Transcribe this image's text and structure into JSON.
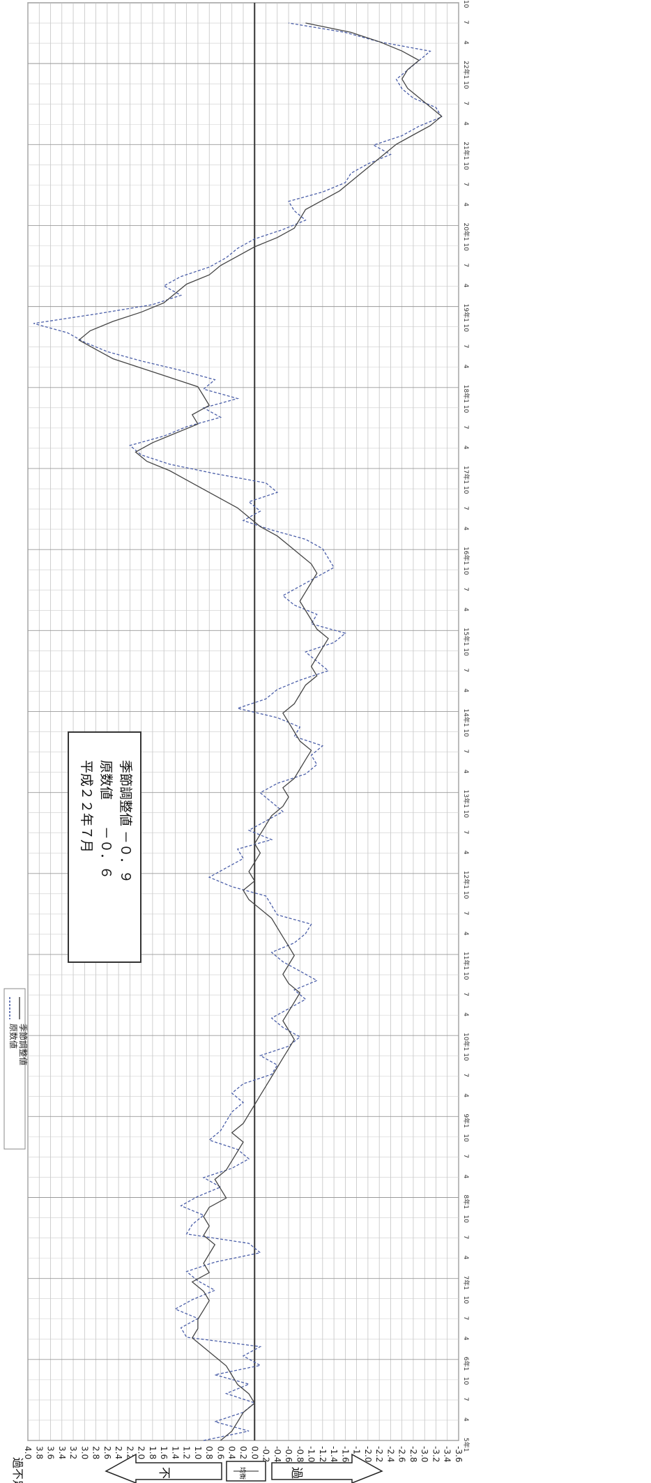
{
  "legend": {
    "raw_label": "原数値",
    "sa_label": "季節調整値"
  },
  "info_box": {
    "line1": "平成２２年７月",
    "line2": "原数値　　－０．６",
    "line3": "季節調整値 －０．９"
  },
  "axis": {
    "value_label": "過不足率（%）",
    "ticks": [
      "4.0",
      "3.8",
      "3.6",
      "3.4",
      "3.2",
      "3.0",
      "2.8",
      "2.6",
      "2.4",
      "2.2",
      "2.0",
      "1.8",
      "1.6",
      "1.4",
      "1.2",
      "1.0",
      "0.8",
      "0.6",
      "0.4",
      "0.2",
      "0.0",
      "-0.2",
      "-0.4",
      "-0.6",
      "-0.8",
      "-1.0",
      "-1.2",
      "-1.4",
      "-1.6",
      "-1.8",
      "-2.0",
      "-2.2",
      "-2.4",
      "-2.6",
      "-2.8",
      "-3.0",
      "-3.2",
      "-3.4",
      "-3.6"
    ],
    "shortage_label": "不　足",
    "balance_label": "均衡",
    "surplus_label": "過　剰"
  },
  "chart_data": {
    "type": "line",
    "orientation": "rotated",
    "xlabel": "",
    "ylabel": "過不足率（%）",
    "ylim": [
      -3.6,
      4.0
    ],
    "year_labels": [
      "5年1",
      "6年1",
      "7年1",
      "8年1",
      "9年1",
      "10年1",
      "11年1",
      "12年1",
      "13年1",
      "14年1",
      "15年1",
      "16年1",
      "17年1",
      "18年1",
      "19年1",
      "20年1",
      "21年1",
      "22年1"
    ],
    "month_labels": [
      "1",
      "4",
      "7",
      "10"
    ],
    "x_start": "平成5年1月",
    "x_end": "平成22年7月",
    "series": [
      {
        "name": "原数値",
        "style": "dashed",
        "values": [
          0.9,
          0.1,
          0.7,
          0.2,
          0.0,
          0.5,
          0.1,
          0.7,
          -0.1,
          0.2,
          -0.1,
          1.2,
          1.3,
          1.0,
          1.4,
          1.1,
          0.7,
          1.0,
          1.2,
          0.7,
          -0.1,
          0.1,
          1.2,
          1.1,
          0.9,
          1.3,
          1.0,
          0.6,
          0.9,
          0.4,
          0.1,
          0.3,
          0.8,
          0.6,
          0.5,
          0.4,
          0.2,
          0.4,
          0.2,
          -0.3,
          -0.4,
          -0.1,
          -0.6,
          -0.8,
          -0.5,
          -0.3,
          -0.6,
          -0.9,
          -0.7,
          -1.1,
          -0.8,
          -0.5,
          -0.3,
          -0.7,
          -0.9,
          -1.0,
          -0.4,
          -0.3,
          -0.2,
          0.4,
          0.8,
          0.5,
          0.2,
          0.3,
          -0.3,
          0.1,
          -0.2,
          -0.5,
          -0.3,
          -0.1,
          -0.4,
          -0.9,
          -1.1,
          -1.0,
          -1.2,
          -0.7,
          -0.8,
          -0.4,
          0.3,
          -0.2,
          -0.4,
          -0.8,
          -1.3,
          -1.1,
          -0.9,
          -1.4,
          -1.6,
          -1.0,
          -1.1,
          -0.7,
          -0.5,
          -0.8,
          -1.1,
          -1.4,
          -1.3,
          -1.2,
          -0.9,
          -0.3,
          0.2,
          -0.1,
          0.1,
          -0.4,
          -0.2,
          0.7,
          1.5,
          2.0,
          2.2,
          1.6,
          1.2,
          0.6,
          0.9,
          0.3,
          0.9,
          0.7,
          1.3,
          2.0,
          2.6,
          3.0,
          3.3,
          3.9,
          2.8,
          1.8,
          1.3,
          1.6,
          1.3,
          0.8,
          0.5,
          0.3,
          0.0,
          -0.5,
          -0.9,
          -0.7,
          -0.6,
          -1.2,
          -1.6,
          -1.7,
          -2.0,
          -2.4,
          -2.1,
          -2.6,
          -2.9,
          -3.3,
          -3.2,
          -2.8,
          -2.6,
          -2.5,
          -2.7,
          -2.9,
          -3.1,
          -2.2,
          -1.6,
          -0.6
        ]
      },
      {
        "name": "季節調整値",
        "style": "solid",
        "values": [
          0.6,
          0.4,
          0.3,
          0.2,
          0.0,
          0.1,
          0.3,
          0.4,
          0.5,
          0.7,
          0.9,
          1.1,
          1.0,
          1.0,
          0.9,
          0.8,
          0.9,
          1.1,
          0.8,
          0.9,
          0.8,
          0.7,
          0.9,
          0.8,
          0.9,
          0.8,
          0.5,
          0.6,
          0.7,
          0.5,
          0.4,
          0.3,
          0.2,
          0.4,
          0.2,
          0.1,
          0.0,
          -0.1,
          -0.2,
          -0.3,
          -0.4,
          -0.5,
          -0.6,
          -0.7,
          -0.6,
          -0.5,
          -0.6,
          -0.7,
          -0.8,
          -0.6,
          -0.5,
          -0.6,
          -0.7,
          -0.6,
          -0.5,
          -0.4,
          -0.3,
          -0.1,
          0.1,
          0.2,
          0.0,
          0.1,
          0.0,
          -0.1,
          0.0,
          -0.1,
          -0.2,
          -0.3,
          -0.5,
          -0.6,
          -0.5,
          -0.7,
          -0.8,
          -0.9,
          -1.0,
          -0.8,
          -0.7,
          -0.6,
          -0.5,
          -0.7,
          -0.8,
          -0.9,
          -1.1,
          -1.0,
          -1.1,
          -1.2,
          -1.3,
          -1.1,
          -1.0,
          -0.9,
          -0.8,
          -0.9,
          -1.0,
          -1.1,
          -1.0,
          -0.8,
          -0.6,
          -0.4,
          -0.1,
          0.1,
          0.3,
          0.6,
          0.9,
          1.2,
          1.5,
          1.9,
          2.1,
          1.8,
          1.4,
          1.0,
          1.1,
          0.8,
          0.9,
          1.0,
          1.5,
          2.0,
          2.5,
          2.8,
          3.1,
          2.9,
          2.5,
          2.0,
          1.6,
          1.4,
          1.2,
          0.8,
          0.6,
          0.3,
          0.0,
          -0.4,
          -0.7,
          -0.8,
          -0.9,
          -1.2,
          -1.5,
          -1.7,
          -1.9,
          -2.1,
          -2.3,
          -2.5,
          -2.8,
          -3.1,
          -3.3,
          -3.1,
          -2.9,
          -2.7,
          -2.6,
          -2.7,
          -2.9,
          -2.6,
          -2.2,
          -1.7,
          -0.9
        ]
      }
    ],
    "grid": true,
    "legend_position": "top-left"
  }
}
